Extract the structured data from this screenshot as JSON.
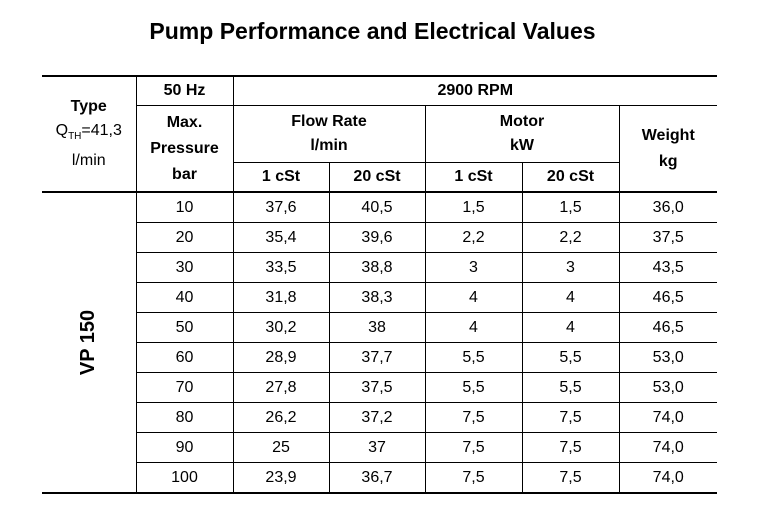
{
  "title": "Pump Performance and Electrical Values",
  "header": {
    "type_label": "Type",
    "type_q": "Q",
    "type_q_sub": "TH",
    "type_q_value": "=41,3",
    "type_unit": "l/min",
    "frequency": "50 Hz",
    "max_label": "Max.",
    "pressure_label": "Pressure",
    "pressure_unit": "bar",
    "rpm": "2900 RPM",
    "flow_label": "Flow Rate",
    "flow_unit": "l/min",
    "motor_label": "Motor",
    "motor_unit": "kW",
    "weight_label": "Weight",
    "weight_unit": "kg",
    "flow_sub": [
      "1 cSt",
      "20 cSt"
    ],
    "motor_sub": [
      "1 cSt",
      "20 cSt"
    ]
  },
  "model": "VP 150",
  "rows": [
    {
      "pressure": "10",
      "flow_1": "37,6",
      "flow_20": "40,5",
      "motor_1": "1,5",
      "motor_20": "1,5",
      "weight": "36,0"
    },
    {
      "pressure": "20",
      "flow_1": "35,4",
      "flow_20": "39,6",
      "motor_1": "2,2",
      "motor_20": "2,2",
      "weight": "37,5"
    },
    {
      "pressure": "30",
      "flow_1": "33,5",
      "flow_20": "38,8",
      "motor_1": "3",
      "motor_20": "3",
      "weight": "43,5"
    },
    {
      "pressure": "40",
      "flow_1": "31,8",
      "flow_20": "38,3",
      "motor_1": "4",
      "motor_20": "4",
      "weight": "46,5"
    },
    {
      "pressure": "50",
      "flow_1": "30,2",
      "flow_20": "38",
      "motor_1": "4",
      "motor_20": "4",
      "weight": "46,5"
    },
    {
      "pressure": "60",
      "flow_1": "28,9",
      "flow_20": "37,7",
      "motor_1": "5,5",
      "motor_20": "5,5",
      "weight": "53,0"
    },
    {
      "pressure": "70",
      "flow_1": "27,8",
      "flow_20": "37,5",
      "motor_1": "5,5",
      "motor_20": "5,5",
      "weight": "53,0"
    },
    {
      "pressure": "80",
      "flow_1": "26,2",
      "flow_20": "37,2",
      "motor_1": "7,5",
      "motor_20": "7,5",
      "weight": "74,0"
    },
    {
      "pressure": "90",
      "flow_1": "25",
      "flow_20": "37",
      "motor_1": "7,5",
      "motor_20": "7,5",
      "weight": "74,0"
    },
    {
      "pressure": "100",
      "flow_1": "23,9",
      "flow_20": "36,7",
      "motor_1": "7,5",
      "motor_20": "7,5",
      "weight": "74,0"
    }
  ]
}
